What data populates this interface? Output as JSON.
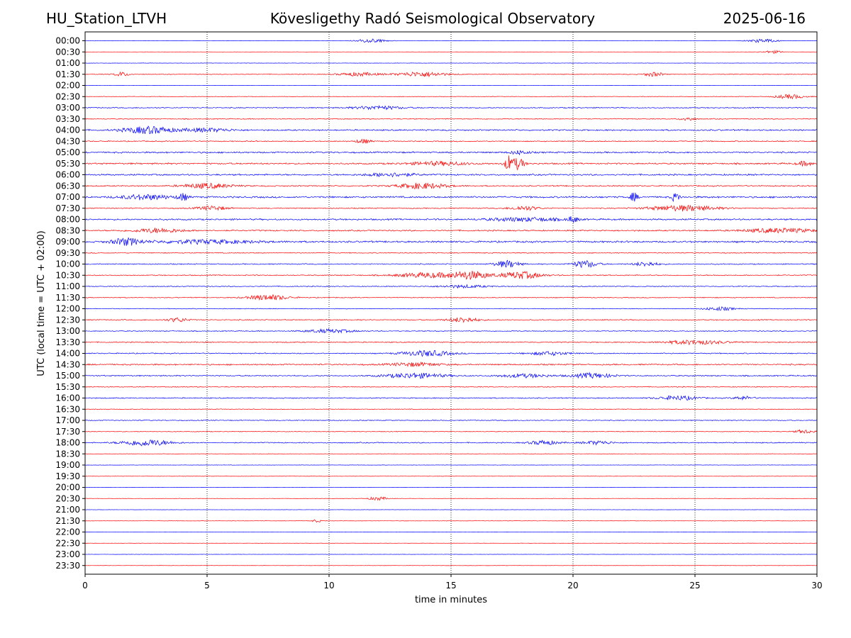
{
  "header": {
    "station": "HU_Station_LTVH",
    "observatory": "Kövesligethy Radó Seismological Observatory",
    "date": "2025-06-16"
  },
  "chart_data": {
    "type": "line",
    "subtype": "helicorder",
    "xlabel": "time in minutes",
    "ylabel": "UTC (local time = UTC + 02:00)",
    "xlim": [
      0,
      30
    ],
    "x_ticks": [
      0,
      5,
      10,
      15,
      20,
      25,
      30
    ],
    "x_tick_labels": [
      "0",
      "5",
      "10",
      "15",
      "20",
      "25",
      "30"
    ],
    "vertical_gridlines": [
      5,
      10,
      15,
      20,
      25
    ],
    "grid_style": "dotted",
    "row_labels": [
      "00:00",
      "00:30",
      "01:00",
      "01:30",
      "02:00",
      "02:30",
      "03:00",
      "03:30",
      "04:00",
      "04:30",
      "05:00",
      "05:30",
      "06:00",
      "06:30",
      "07:00",
      "07:30",
      "08:00",
      "08:30",
      "09:00",
      "09:30",
      "10:00",
      "10:30",
      "11:00",
      "11:30",
      "12:00",
      "12:30",
      "13:00",
      "13:30",
      "14:00",
      "14:30",
      "15:00",
      "15:30",
      "16:00",
      "16:30",
      "17:00",
      "17:30",
      "18:00",
      "18:30",
      "19:00",
      "19:30",
      "20:00",
      "20:30",
      "21:00",
      "21:30",
      "22:00",
      "22:30",
      "23:00",
      "23:30"
    ],
    "trace_colors": [
      "#0000ff",
      "#ff0000"
    ],
    "trace_noise": [
      0.2,
      0.1,
      0.2,
      0.4,
      0.15,
      0.3,
      0.6,
      0.5,
      0.8,
      0.6,
      0.9,
      0.9,
      0.9,
      0.7,
      1.0,
      0.6,
      0.9,
      0.8,
      1.0,
      0.5,
      0.6,
      0.6,
      0.5,
      0.5,
      0.4,
      0.6,
      0.5,
      0.6,
      0.6,
      0.8,
      0.7,
      0.5,
      0.6,
      0.4,
      0.5,
      0.4,
      0.6,
      0.2,
      0.2,
      0.2,
      0.15,
      0.2,
      0.15,
      0.2,
      0.15,
      0.15,
      0.15,
      0.15
    ],
    "events": [
      {
        "row": "00:00",
        "t": 11.7,
        "amp": 2.5,
        "dur": 0.6
      },
      {
        "row": "00:00",
        "t": 27.8,
        "amp": 2.5,
        "dur": 0.6
      },
      {
        "row": "00:30",
        "t": 28.2,
        "amp": 2.0,
        "dur": 0.4
      },
      {
        "row": "01:30",
        "t": 1.5,
        "amp": 3.0,
        "dur": 0.3
      },
      {
        "row": "01:30",
        "t": 11.2,
        "amp": 2.5,
        "dur": 0.8
      },
      {
        "row": "01:30",
        "t": 13.8,
        "amp": 3.5,
        "dur": 1.0
      },
      {
        "row": "01:30",
        "t": 23.3,
        "amp": 3.0,
        "dur": 0.4
      },
      {
        "row": "02:30",
        "t": 28.9,
        "amp": 3.0,
        "dur": 0.6
      },
      {
        "row": "03:00",
        "t": 12.0,
        "amp": 2.5,
        "dur": 1.0
      },
      {
        "row": "03:30",
        "t": 24.7,
        "amp": 2.5,
        "dur": 0.3
      },
      {
        "row": "04:00",
        "t": 2.6,
        "amp": 5.0,
        "dur": 1.0
      },
      {
        "row": "04:00",
        "t": 5.0,
        "amp": 2.5,
        "dur": 1.0
      },
      {
        "row": "04:30",
        "t": 11.4,
        "amp": 3.0,
        "dur": 0.3
      },
      {
        "row": "05:00",
        "t": 17.8,
        "amp": 2.5,
        "dur": 0.4
      },
      {
        "row": "05:30",
        "t": 17.4,
        "amp": 11.0,
        "dur": 0.2
      },
      {
        "row": "05:30",
        "t": 17.8,
        "amp": 8.0,
        "dur": 0.2
      },
      {
        "row": "05:30",
        "t": 14.5,
        "amp": 2.5,
        "dur": 1.2
      },
      {
        "row": "05:30",
        "t": 29.5,
        "amp": 3.0,
        "dur": 0.3
      },
      {
        "row": "06:00",
        "t": 12.5,
        "amp": 2.5,
        "dur": 1.0
      },
      {
        "row": "06:30",
        "t": 5.0,
        "amp": 3.5,
        "dur": 1.0
      },
      {
        "row": "06:30",
        "t": 13.8,
        "amp": 4.0,
        "dur": 1.0
      },
      {
        "row": "07:00",
        "t": 2.5,
        "amp": 3.5,
        "dur": 1.0
      },
      {
        "row": "07:00",
        "t": 4.0,
        "amp": 5.0,
        "dur": 0.2
      },
      {
        "row": "07:00",
        "t": 22.5,
        "amp": 6.5,
        "dur": 0.15
      },
      {
        "row": "07:00",
        "t": 24.2,
        "amp": 6.5,
        "dur": 0.15
      },
      {
        "row": "07:30",
        "t": 5.2,
        "amp": 3.0,
        "dur": 0.6
      },
      {
        "row": "07:30",
        "t": 18.0,
        "amp": 3.0,
        "dur": 0.6
      },
      {
        "row": "07:30",
        "t": 24.5,
        "amp": 4.0,
        "dur": 1.4
      },
      {
        "row": "08:00",
        "t": 18.0,
        "amp": 2.5,
        "dur": 1.5
      },
      {
        "row": "08:00",
        "t": 20.0,
        "amp": 4.5,
        "dur": 0.2
      },
      {
        "row": "08:30",
        "t": 3.0,
        "amp": 3.0,
        "dur": 1.0
      },
      {
        "row": "08:30",
        "t": 28.5,
        "amp": 3.0,
        "dur": 1.4
      },
      {
        "row": "09:00",
        "t": 1.7,
        "amp": 5.0,
        "dur": 0.6
      },
      {
        "row": "09:00",
        "t": 5.0,
        "amp": 2.5,
        "dur": 2.0
      },
      {
        "row": "10:00",
        "t": 17.3,
        "amp": 5.0,
        "dur": 0.5
      },
      {
        "row": "10:00",
        "t": 20.5,
        "amp": 5.0,
        "dur": 0.5
      },
      {
        "row": "10:00",
        "t": 23.0,
        "amp": 3.0,
        "dur": 0.5
      },
      {
        "row": "10:30",
        "t": 14.0,
        "amp": 3.5,
        "dur": 1.2
      },
      {
        "row": "10:30",
        "t": 15.8,
        "amp": 5.5,
        "dur": 0.8
      },
      {
        "row": "10:30",
        "t": 17.9,
        "amp": 5.0,
        "dur": 0.8
      },
      {
        "row": "11:00",
        "t": 15.5,
        "amp": 2.0,
        "dur": 1.0
      },
      {
        "row": "11:30",
        "t": 7.5,
        "amp": 4.0,
        "dur": 0.8
      },
      {
        "row": "12:00",
        "t": 26.0,
        "amp": 2.5,
        "dur": 0.6
      },
      {
        "row": "12:30",
        "t": 3.8,
        "amp": 3.0,
        "dur": 0.4
      },
      {
        "row": "12:30",
        "t": 15.5,
        "amp": 3.5,
        "dur": 0.6
      },
      {
        "row": "13:00",
        "t": 10.0,
        "amp": 2.5,
        "dur": 1.0
      },
      {
        "row": "13:30",
        "t": 25.0,
        "amp": 3.0,
        "dur": 1.2
      },
      {
        "row": "14:00",
        "t": 14.0,
        "amp": 4.0,
        "dur": 1.0
      },
      {
        "row": "14:00",
        "t": 19.0,
        "amp": 2.5,
        "dur": 0.8
      },
      {
        "row": "14:30",
        "t": 13.5,
        "amp": 2.5,
        "dur": 1.0
      },
      {
        "row": "15:00",
        "t": 13.5,
        "amp": 3.5,
        "dur": 1.2
      },
      {
        "row": "15:00",
        "t": 18.0,
        "amp": 2.5,
        "dur": 1.0
      },
      {
        "row": "15:00",
        "t": 20.8,
        "amp": 3.5,
        "dur": 0.8
      },
      {
        "row": "16:00",
        "t": 24.3,
        "amp": 3.0,
        "dur": 0.8
      },
      {
        "row": "16:00",
        "t": 27.0,
        "amp": 2.5,
        "dur": 0.4
      },
      {
        "row": "17:30",
        "t": 29.5,
        "amp": 2.5,
        "dur": 0.4
      },
      {
        "row": "18:00",
        "t": 2.5,
        "amp": 4.5,
        "dur": 1.0
      },
      {
        "row": "18:00",
        "t": 18.8,
        "amp": 3.0,
        "dur": 0.6
      },
      {
        "row": "18:00",
        "t": 21.0,
        "amp": 2.5,
        "dur": 0.6
      },
      {
        "row": "20:30",
        "t": 12.0,
        "amp": 2.5,
        "dur": 0.4
      },
      {
        "row": "21:30",
        "t": 9.5,
        "amp": 2.0,
        "dur": 0.2
      }
    ]
  }
}
